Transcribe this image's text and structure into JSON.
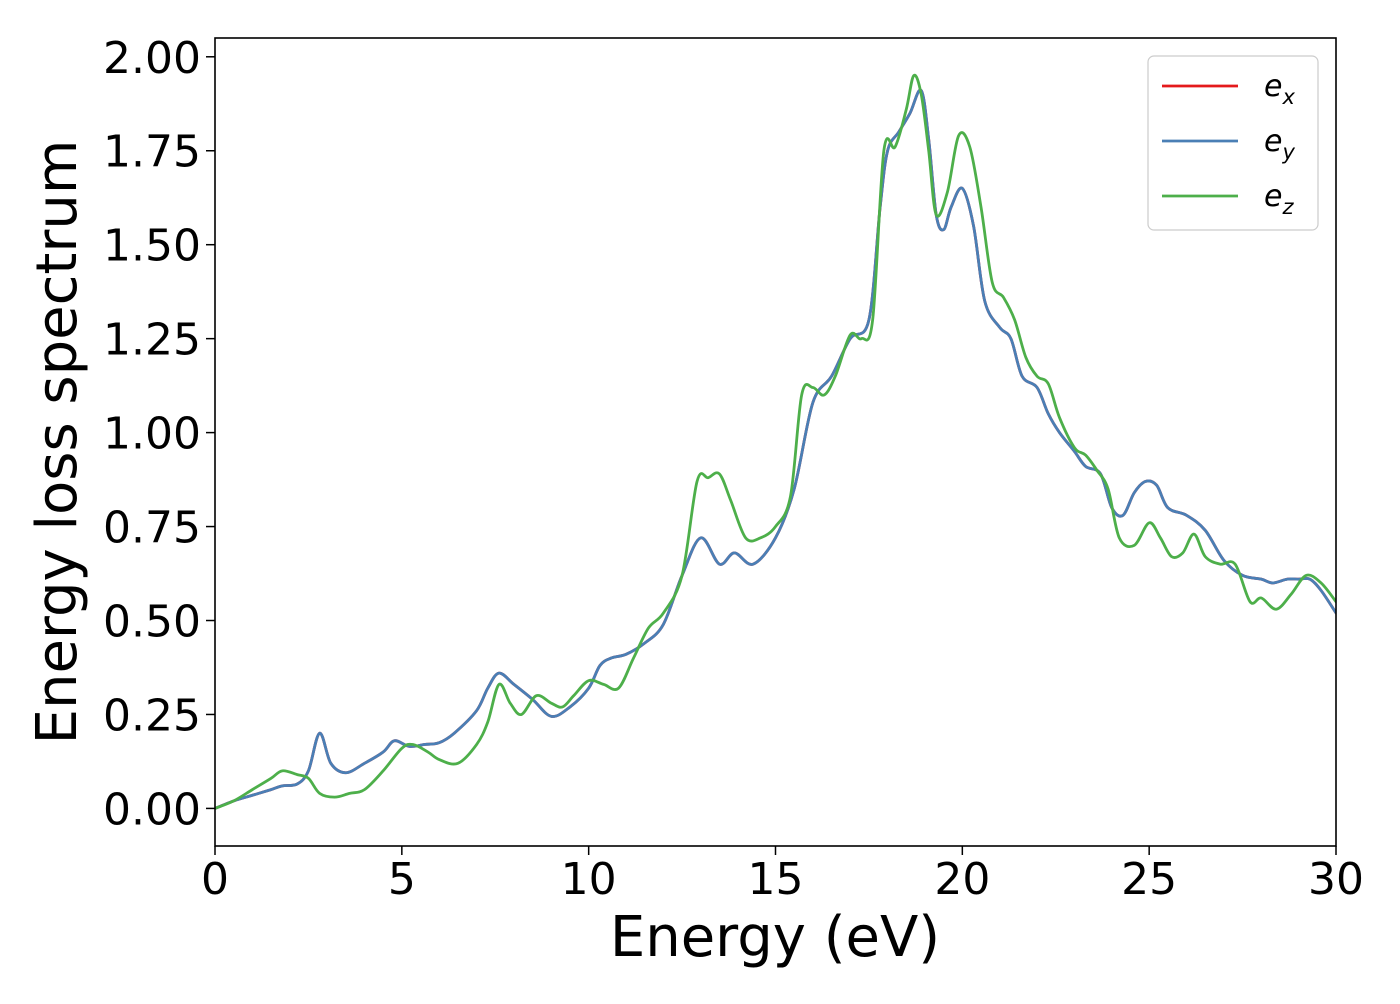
{
  "chart_data": {
    "type": "line",
    "title": "",
    "xlabel": "Energy (eV)",
    "ylabel": "Energy loss spectrum",
    "xlim": [
      0,
      30
    ],
    "ylim": [
      -0.1,
      2.05
    ],
    "xticks": [
      0,
      5,
      10,
      15,
      20,
      25,
      30
    ],
    "xtick_labels": [
      "0",
      "5",
      "10",
      "15",
      "20",
      "25",
      "30"
    ],
    "yticks": [
      0,
      0.25,
      0.5,
      0.75,
      1.0,
      1.25,
      1.5,
      1.75,
      2.0
    ],
    "ytick_labels": [
      "0.00",
      "0.25",
      "0.50",
      "0.75",
      "1.00",
      "1.25",
      "1.50",
      "1.75",
      "2.00"
    ],
    "grid": false,
    "legend_position": "top-right",
    "series": [
      {
        "name": "e_x",
        "legend_main": "e",
        "legend_sub": "x",
        "color": "#e41a1c",
        "x": [
          0,
          0.5,
          1.0,
          1.5,
          1.8,
          2.2,
          2.5,
          2.8,
          3.1,
          3.5,
          4.0,
          4.5,
          4.8,
          5.2,
          5.6,
          6.0,
          6.4,
          7.0,
          7.3,
          7.6,
          8.0,
          8.5,
          9.0,
          9.5,
          10.0,
          10.3,
          10.6,
          11.0,
          11.5,
          12.0,
          12.5,
          13.0,
          13.5,
          13.9,
          14.4,
          15.0,
          15.5,
          16.0,
          16.5,
          17.0,
          17.5,
          17.8,
          18.0,
          18.3,
          18.6,
          18.9,
          19.1,
          19.3,
          19.5,
          19.7,
          20.0,
          20.3,
          20.6,
          21.0,
          21.3,
          21.6,
          22.0,
          22.3,
          22.6,
          23.0,
          23.3,
          23.7,
          24.0,
          24.3,
          24.6,
          24.9,
          25.2,
          25.5,
          26.0,
          26.5,
          27.0,
          27.5,
          28.0,
          28.3,
          28.7,
          29.0,
          29.3,
          29.6,
          30.0
        ],
        "y": [
          0.0,
          0.02,
          0.035,
          0.05,
          0.06,
          0.065,
          0.1,
          0.2,
          0.12,
          0.095,
          0.12,
          0.15,
          0.18,
          0.165,
          0.17,
          0.175,
          0.2,
          0.26,
          0.32,
          0.36,
          0.33,
          0.29,
          0.245,
          0.27,
          0.32,
          0.38,
          0.4,
          0.41,
          0.44,
          0.49,
          0.62,
          0.72,
          0.65,
          0.68,
          0.65,
          0.72,
          0.85,
          1.08,
          1.15,
          1.25,
          1.3,
          1.6,
          1.75,
          1.8,
          1.85,
          1.91,
          1.78,
          1.58,
          1.54,
          1.6,
          1.65,
          1.55,
          1.35,
          1.28,
          1.25,
          1.15,
          1.12,
          1.05,
          1.0,
          0.95,
          0.91,
          0.89,
          0.8,
          0.78,
          0.84,
          0.87,
          0.86,
          0.8,
          0.78,
          0.74,
          0.66,
          0.62,
          0.61,
          0.6,
          0.61,
          0.61,
          0.61,
          0.58,
          0.52
        ]
      },
      {
        "name": "e_y",
        "legend_main": "e",
        "legend_sub": "y",
        "color": "#4a7fb5",
        "x": [
          0,
          0.5,
          1.0,
          1.5,
          1.8,
          2.2,
          2.5,
          2.8,
          3.1,
          3.5,
          4.0,
          4.5,
          4.8,
          5.2,
          5.6,
          6.0,
          6.4,
          7.0,
          7.3,
          7.6,
          8.0,
          8.5,
          9.0,
          9.5,
          10.0,
          10.3,
          10.6,
          11.0,
          11.5,
          12.0,
          12.5,
          13.0,
          13.5,
          13.9,
          14.4,
          15.0,
          15.5,
          16.0,
          16.5,
          17.0,
          17.5,
          17.8,
          18.0,
          18.3,
          18.6,
          18.9,
          19.1,
          19.3,
          19.5,
          19.7,
          20.0,
          20.3,
          20.6,
          21.0,
          21.3,
          21.6,
          22.0,
          22.3,
          22.6,
          23.0,
          23.3,
          23.7,
          24.0,
          24.3,
          24.6,
          24.9,
          25.2,
          25.5,
          26.0,
          26.5,
          27.0,
          27.5,
          28.0,
          28.3,
          28.7,
          29.0,
          29.3,
          29.6,
          30.0
        ],
        "y": [
          0.0,
          0.02,
          0.035,
          0.05,
          0.06,
          0.065,
          0.1,
          0.2,
          0.12,
          0.095,
          0.12,
          0.15,
          0.18,
          0.165,
          0.17,
          0.175,
          0.2,
          0.26,
          0.32,
          0.36,
          0.33,
          0.29,
          0.245,
          0.27,
          0.32,
          0.38,
          0.4,
          0.41,
          0.44,
          0.49,
          0.62,
          0.72,
          0.65,
          0.68,
          0.65,
          0.72,
          0.85,
          1.08,
          1.15,
          1.25,
          1.3,
          1.6,
          1.75,
          1.8,
          1.85,
          1.91,
          1.78,
          1.58,
          1.54,
          1.6,
          1.65,
          1.55,
          1.35,
          1.28,
          1.25,
          1.15,
          1.12,
          1.05,
          1.0,
          0.95,
          0.91,
          0.89,
          0.8,
          0.78,
          0.84,
          0.87,
          0.86,
          0.8,
          0.78,
          0.74,
          0.66,
          0.62,
          0.61,
          0.6,
          0.61,
          0.61,
          0.61,
          0.58,
          0.52
        ]
      },
      {
        "name": "e_z",
        "legend_main": "e",
        "legend_sub": "z",
        "color": "#4daf4a",
        "x": [
          0,
          0.5,
          1.0,
          1.5,
          1.8,
          2.2,
          2.5,
          2.8,
          3.2,
          3.6,
          4.0,
          4.5,
          5.0,
          5.3,
          5.7,
          6.0,
          6.5,
          7.0,
          7.3,
          7.6,
          7.9,
          8.2,
          8.6,
          9.0,
          9.3,
          9.6,
          10.0,
          10.4,
          10.8,
          11.2,
          11.6,
          12.0,
          12.5,
          12.9,
          13.2,
          13.5,
          13.8,
          14.2,
          14.6,
          15.0,
          15.4,
          15.7,
          16.0,
          16.3,
          16.6,
          17.0,
          17.3,
          17.6,
          17.9,
          18.2,
          18.5,
          18.7,
          18.9,
          19.1,
          19.3,
          19.6,
          19.9,
          20.2,
          20.5,
          20.8,
          21.1,
          21.4,
          21.7,
          22.0,
          22.3,
          22.6,
          23.0,
          23.3,
          23.6,
          23.9,
          24.2,
          24.6,
          25.0,
          25.3,
          25.6,
          25.9,
          26.2,
          26.5,
          26.9,
          27.3,
          27.7,
          28.0,
          28.4,
          28.8,
          29.2,
          29.6,
          30.0
        ],
        "y": [
          0.0,
          0.02,
          0.05,
          0.08,
          0.1,
          0.09,
          0.08,
          0.04,
          0.03,
          0.04,
          0.05,
          0.1,
          0.16,
          0.17,
          0.15,
          0.13,
          0.12,
          0.17,
          0.23,
          0.33,
          0.28,
          0.25,
          0.3,
          0.28,
          0.27,
          0.3,
          0.34,
          0.33,
          0.32,
          0.4,
          0.48,
          0.52,
          0.62,
          0.87,
          0.88,
          0.89,
          0.82,
          0.72,
          0.72,
          0.75,
          0.83,
          1.1,
          1.12,
          1.1,
          1.15,
          1.26,
          1.25,
          1.3,
          1.75,
          1.76,
          1.86,
          1.95,
          1.9,
          1.75,
          1.58,
          1.64,
          1.79,
          1.76,
          1.6,
          1.4,
          1.36,
          1.3,
          1.2,
          1.15,
          1.13,
          1.04,
          0.96,
          0.94,
          0.9,
          0.85,
          0.72,
          0.7,
          0.76,
          0.72,
          0.67,
          0.68,
          0.73,
          0.67,
          0.65,
          0.65,
          0.55,
          0.56,
          0.53,
          0.57,
          0.62,
          0.6,
          0.55
        ]
      }
    ]
  }
}
